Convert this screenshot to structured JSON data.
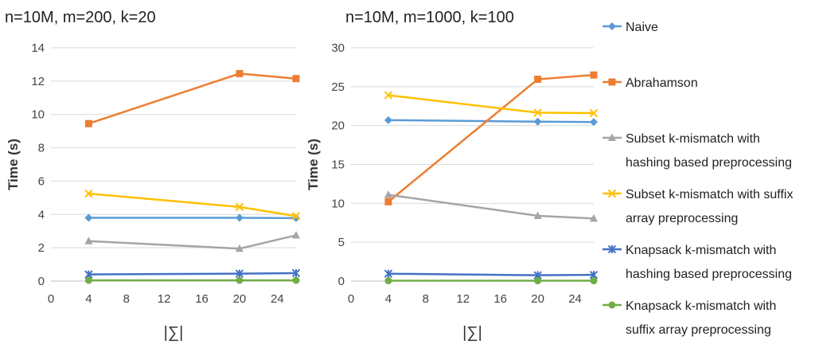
{
  "chart_data": [
    {
      "type": "line",
      "title": "n=10M, m=200, k=20",
      "xlabel": "|∑|",
      "ylabel": "Time (s)",
      "xlim": [
        0,
        26
      ],
      "xticks": [
        0,
        4,
        8,
        12,
        16,
        20,
        24
      ],
      "ylim": [
        0,
        14
      ],
      "yticks": [
        0,
        2,
        4,
        6,
        8,
        10,
        12,
        14
      ],
      "x": [
        4,
        20,
        26
      ],
      "series": [
        {
          "name": "Naive",
          "values": [
            3.8,
            3.8,
            3.78
          ]
        },
        {
          "name": "Abrahamson",
          "values": [
            9.45,
            12.45,
            12.15
          ]
        },
        {
          "name": "Subset k-mismatch with hashing based preprocessing",
          "values": [
            2.4,
            1.95,
            2.75
          ]
        },
        {
          "name": "Subset k-mismatch with suffix array preprocessing",
          "values": [
            5.25,
            4.45,
            3.9
          ]
        },
        {
          "name": "Knapsack k-mismatch with hashing based preprocessing",
          "values": [
            0.4,
            0.45,
            0.48
          ]
        },
        {
          "name": "Knapsack k-mismatch with suffix array preprocessing",
          "values": [
            0.05,
            0.05,
            0.05
          ]
        }
      ]
    },
    {
      "type": "line",
      "title": "n=10M, m=1000, k=100",
      "xlabel": "|∑|",
      "ylabel": "Time (s)",
      "xlim": [
        0,
        26
      ],
      "xticks": [
        0,
        4,
        8,
        12,
        16,
        20,
        24
      ],
      "ylim": [
        0,
        30
      ],
      "yticks": [
        0,
        5,
        10,
        15,
        20,
        25,
        30
      ],
      "x": [
        4,
        20,
        26
      ],
      "series": [
        {
          "name": "Naive",
          "values": [
            20.7,
            20.5,
            20.45
          ]
        },
        {
          "name": "Abrahamson",
          "values": [
            10.2,
            25.95,
            26.5
          ]
        },
        {
          "name": "Subset k-mismatch with hashing based preprocessing",
          "values": [
            11.1,
            8.4,
            8.05
          ]
        },
        {
          "name": "Subset k-mismatch with suffix array preprocessing",
          "values": [
            23.9,
            21.65,
            21.6
          ]
        },
        {
          "name": "Knapsack k-mismatch with hashing based preprocessing",
          "values": [
            0.95,
            0.75,
            0.8
          ]
        },
        {
          "name": "Knapsack k-mismatch with suffix array preprocessing",
          "values": [
            0.05,
            0.05,
            0.05
          ]
        }
      ]
    }
  ],
  "series_styles": [
    {
      "color": "#5B9BD5",
      "marker": "diamond"
    },
    {
      "color": "#ED7D31",
      "marker": "square"
    },
    {
      "color": "#A5A5A5",
      "marker": "triangle"
    },
    {
      "color": "#FFC000",
      "marker": "x"
    },
    {
      "color": "#4472C4",
      "marker": "star"
    },
    {
      "color": "#70AD47",
      "marker": "circle"
    }
  ],
  "legend": [
    {
      "lines": [
        "Naive"
      ]
    },
    {
      "lines": [
        "Abrahamson"
      ]
    },
    {
      "lines": [
        "Subset k-mismatch with",
        "hashing based preprocessing"
      ]
    },
    {
      "lines": [
        "Subset k-mismatch with suffix",
        "array preprocessing"
      ]
    },
    {
      "lines": [
        "Knapsack k-mismatch with",
        "hashing based preprocessing"
      ]
    },
    {
      "lines": [
        "Knapsack k-mismatch with",
        "suffix array preprocessing"
      ]
    }
  ]
}
